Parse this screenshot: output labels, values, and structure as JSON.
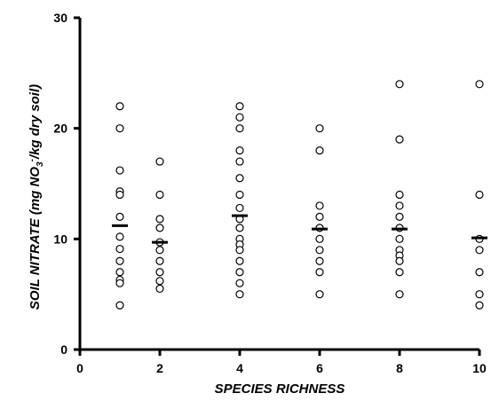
{
  "chart_data": {
    "type": "scatter",
    "xlabel": "SPECIES RICHNESS",
    "ylabel_main": "SOIL NITRATE (mg NO",
    "ylabel_sub": "3",
    "ylabel_sup": "-",
    "ylabel_tail": "/kg dry soil)",
    "xlim": [
      0,
      10
    ],
    "ylim": [
      0,
      30
    ],
    "xticks": [
      0,
      2,
      4,
      6,
      8,
      10
    ],
    "yticks": [
      0,
      10,
      20,
      30
    ],
    "grid": false,
    "points": [
      {
        "x": 1,
        "values": [
          22,
          20,
          16.2,
          14.3,
          14,
          12,
          10.2,
          9.1,
          8,
          7,
          6.3,
          6,
          4
        ]
      },
      {
        "x": 2,
        "values": [
          17,
          14,
          11.8,
          11,
          9.7,
          9,
          8,
          7,
          6.2,
          5.5
        ]
      },
      {
        "x": 4,
        "values": [
          22,
          21,
          20,
          18,
          17,
          15.5,
          14,
          12.8,
          11.8,
          11,
          10,
          9.5,
          9,
          8,
          7,
          6,
          5
        ]
      },
      {
        "x": 6,
        "values": [
          20,
          18,
          13,
          12,
          11,
          10,
          9,
          8,
          7,
          5
        ]
      },
      {
        "x": 8,
        "values": [
          24,
          19,
          14,
          13,
          12,
          11,
          10,
          9,
          8.5,
          8,
          7,
          5
        ]
      },
      {
        "x": 10,
        "values": [
          24,
          14,
          10,
          9,
          7,
          5,
          4
        ]
      }
    ],
    "means": [
      {
        "x": 1,
        "value": 11.2
      },
      {
        "x": 2,
        "value": 9.7
      },
      {
        "x": 4,
        "value": 12.1
      },
      {
        "x": 6,
        "value": 10.9
      },
      {
        "x": 8,
        "value": 10.9
      },
      {
        "x": 10,
        "value": 10.1
      }
    ]
  }
}
